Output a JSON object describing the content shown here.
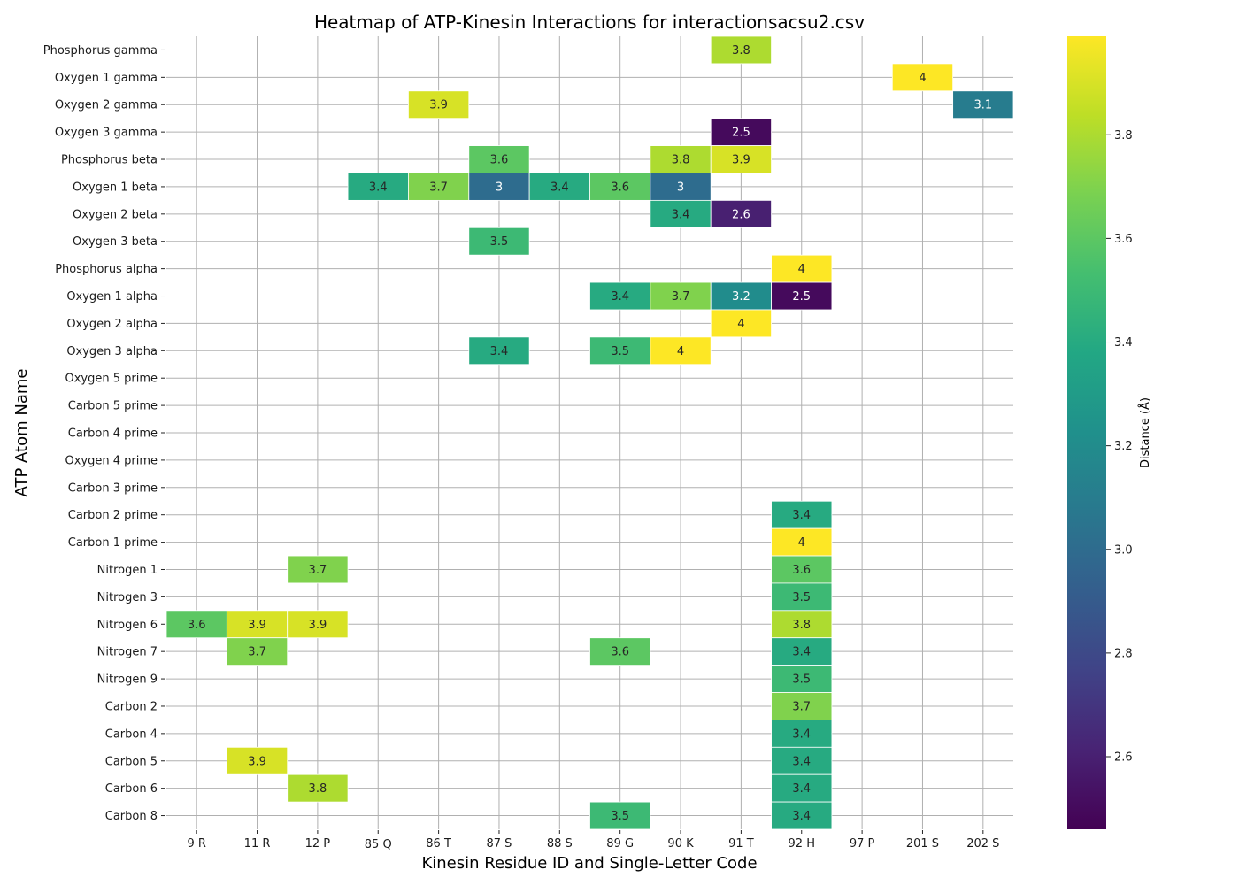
{
  "chart_data": {
    "type": "heatmap",
    "title": "Heatmap of ATP-Kinesin Interactions for interactionsacsu2.csv",
    "xlabel": "Kinesin Residue ID and Single-Letter Code",
    "ylabel": "ATP Atom Name",
    "colorbar_label": "Distance (Å)",
    "colormap": "viridis",
    "color_range": [
      2.46,
      3.99
    ],
    "colorbar_ticks": [
      2.6,
      2.8,
      3.0,
      3.2,
      3.4,
      3.6,
      3.8
    ],
    "colorbar_tick_labels": [
      "2.6",
      "2.8",
      "3.0",
      "3.2",
      "3.4",
      "3.6",
      "3.8"
    ],
    "grid": true,
    "x_categories": [
      "9 R",
      "11 R",
      "12 P",
      "85 Q",
      "86 T",
      "87 S",
      "88 S",
      "89 G",
      "90 K",
      "91 T",
      "92 H",
      "97 P",
      "201 S",
      "202 S"
    ],
    "y_categories": [
      "Phosphorus gamma",
      "Oxygen 1 gamma",
      "Oxygen 2 gamma",
      "Oxygen 3 gamma",
      "Phosphorus beta",
      "Oxygen 1 beta",
      "Oxygen 2 beta",
      "Oxygen 3 beta",
      "Phosphorus alpha",
      "Oxygen 1 alpha",
      "Oxygen 2 alpha",
      "Oxygen 3 alpha",
      "Oxygen 5 prime",
      "Carbon 5 prime",
      "Carbon 4 prime",
      "Oxygen 4 prime",
      "Carbon 3 prime",
      "Carbon 2 prime",
      "Carbon 1 prime",
      "Nitrogen 1",
      "Nitrogen 3",
      "Nitrogen 6",
      "Nitrogen 7",
      "Nitrogen 9",
      "Carbon 2",
      "Carbon 4",
      "Carbon 5",
      "Carbon 6",
      "Carbon 8"
    ],
    "cells": [
      {
        "row": "Phosphorus gamma",
        "col": "91 T",
        "value": 3.8,
        "label": "3.8"
      },
      {
        "row": "Oxygen 1 gamma",
        "col": "201 S",
        "value": 4.0,
        "label": "4"
      },
      {
        "row": "Oxygen 2 gamma",
        "col": "86 T",
        "value": 3.9,
        "label": "3.9"
      },
      {
        "row": "Oxygen 2 gamma",
        "col": "202 S",
        "value": 3.1,
        "label": "3.1"
      },
      {
        "row": "Oxygen 3 gamma",
        "col": "91 T",
        "value": 2.5,
        "label": "2.5"
      },
      {
        "row": "Phosphorus beta",
        "col": "87 S",
        "value": 3.6,
        "label": "3.6"
      },
      {
        "row": "Phosphorus beta",
        "col": "90 K",
        "value": 3.8,
        "label": "3.8"
      },
      {
        "row": "Phosphorus beta",
        "col": "91 T",
        "value": 3.9,
        "label": "3.9"
      },
      {
        "row": "Oxygen 1 beta",
        "col": "85 Q",
        "value": 3.4,
        "label": "3.4"
      },
      {
        "row": "Oxygen 1 beta",
        "col": "86 T",
        "value": 3.7,
        "label": "3.7"
      },
      {
        "row": "Oxygen 1 beta",
        "col": "87 S",
        "value": 3.0,
        "label": "3"
      },
      {
        "row": "Oxygen 1 beta",
        "col": "88 S",
        "value": 3.4,
        "label": "3.4"
      },
      {
        "row": "Oxygen 1 beta",
        "col": "89 G",
        "value": 3.6,
        "label": "3.6"
      },
      {
        "row": "Oxygen 1 beta",
        "col": "90 K",
        "value": 3.0,
        "label": "3"
      },
      {
        "row": "Oxygen 2 beta",
        "col": "90 K",
        "value": 3.4,
        "label": "3.4"
      },
      {
        "row": "Oxygen 2 beta",
        "col": "91 T",
        "value": 2.6,
        "label": "2.6"
      },
      {
        "row": "Oxygen 3 beta",
        "col": "87 S",
        "value": 3.5,
        "label": "3.5"
      },
      {
        "row": "Phosphorus alpha",
        "col": "92 H",
        "value": 4.0,
        "label": "4"
      },
      {
        "row": "Oxygen 1 alpha",
        "col": "89 G",
        "value": 3.4,
        "label": "3.4"
      },
      {
        "row": "Oxygen 1 alpha",
        "col": "90 K",
        "value": 3.7,
        "label": "3.7"
      },
      {
        "row": "Oxygen 1 alpha",
        "col": "91 T",
        "value": 3.2,
        "label": "3.2"
      },
      {
        "row": "Oxygen 1 alpha",
        "col": "92 H",
        "value": 2.5,
        "label": "2.5"
      },
      {
        "row": "Oxygen 2 alpha",
        "col": "91 T",
        "value": 4.0,
        "label": "4"
      },
      {
        "row": "Oxygen 3 alpha",
        "col": "87 S",
        "value": 3.4,
        "label": "3.4"
      },
      {
        "row": "Oxygen 3 alpha",
        "col": "89 G",
        "value": 3.5,
        "label": "3.5"
      },
      {
        "row": "Oxygen 3 alpha",
        "col": "90 K",
        "value": 4.0,
        "label": "4"
      },
      {
        "row": "Carbon 2 prime",
        "col": "92 H",
        "value": 3.4,
        "label": "3.4"
      },
      {
        "row": "Carbon 1 prime",
        "col": "92 H",
        "value": 4.0,
        "label": "4"
      },
      {
        "row": "Nitrogen 1",
        "col": "12 P",
        "value": 3.7,
        "label": "3.7"
      },
      {
        "row": "Nitrogen 1",
        "col": "92 H",
        "value": 3.6,
        "label": "3.6"
      },
      {
        "row": "Nitrogen 3",
        "col": "92 H",
        "value": 3.5,
        "label": "3.5"
      },
      {
        "row": "Nitrogen 6",
        "col": "9 R",
        "value": 3.6,
        "label": "3.6"
      },
      {
        "row": "Nitrogen 6",
        "col": "11 R",
        "value": 3.9,
        "label": "3.9"
      },
      {
        "row": "Nitrogen 6",
        "col": "12 P",
        "value": 3.9,
        "label": "3.9"
      },
      {
        "row": "Nitrogen 6",
        "col": "92 H",
        "value": 3.8,
        "label": "3.8"
      },
      {
        "row": "Nitrogen 7",
        "col": "11 R",
        "value": 3.7,
        "label": "3.7"
      },
      {
        "row": "Nitrogen 7",
        "col": "89 G",
        "value": 3.6,
        "label": "3.6"
      },
      {
        "row": "Nitrogen 7",
        "col": "92 H",
        "value": 3.4,
        "label": "3.4"
      },
      {
        "row": "Nitrogen 9",
        "col": "92 H",
        "value": 3.5,
        "label": "3.5"
      },
      {
        "row": "Carbon 2",
        "col": "92 H",
        "value": 3.7,
        "label": "3.7"
      },
      {
        "row": "Carbon 4",
        "col": "92 H",
        "value": 3.4,
        "label": "3.4"
      },
      {
        "row": "Carbon 5",
        "col": "11 R",
        "value": 3.9,
        "label": "3.9"
      },
      {
        "row": "Carbon 5",
        "col": "92 H",
        "value": 3.4,
        "label": "3.4"
      },
      {
        "row": "Carbon 6",
        "col": "12 P",
        "value": 3.8,
        "label": "3.8"
      },
      {
        "row": "Carbon 6",
        "col": "92 H",
        "value": 3.4,
        "label": "3.4"
      },
      {
        "row": "Carbon 8",
        "col": "89 G",
        "value": 3.5,
        "label": "3.5"
      },
      {
        "row": "Carbon 8",
        "col": "92 H",
        "value": 3.4,
        "label": "3.4"
      }
    ]
  }
}
